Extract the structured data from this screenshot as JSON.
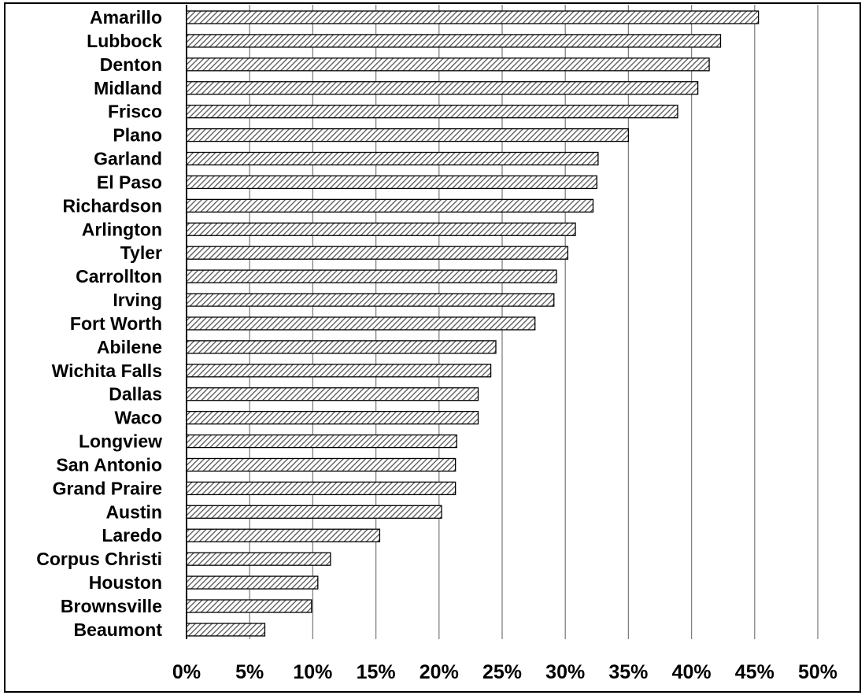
{
  "chart_data": {
    "type": "bar",
    "orientation": "horizontal",
    "title": "",
    "xlabel": "",
    "ylabel": "",
    "categories": [
      "Amarillo",
      "Lubbock",
      "Denton",
      "Midland",
      "Frisco",
      "Plano",
      "Garland",
      "El Paso",
      "Richardson",
      "Arlington",
      "Tyler",
      "Carrollton",
      "Irving",
      "Fort Worth",
      "Abilene",
      "Wichita Falls",
      "Dallas",
      "Waco",
      "Longview",
      "San Antonio",
      "Grand Praire",
      "Austin",
      "Laredo",
      "Corpus Christi",
      "Houston",
      "Brownsville",
      "Beaumont"
    ],
    "values": [
      45.3,
      42.3,
      41.4,
      40.5,
      38.9,
      35.0,
      32.6,
      32.5,
      32.2,
      30.8,
      30.2,
      29.3,
      29.1,
      27.6,
      24.5,
      24.1,
      23.1,
      23.1,
      21.4,
      21.3,
      21.3,
      20.2,
      15.3,
      11.4,
      10.4,
      9.9,
      6.2
    ],
    "xlim": [
      0,
      50
    ],
    "ticks": [
      0,
      5,
      10,
      15,
      20,
      25,
      30,
      35,
      40,
      45,
      50
    ],
    "tick_labels": [
      "0%",
      "5%",
      "10%",
      "15%",
      "20%",
      "25%",
      "30%",
      "35%",
      "40%",
      "45%",
      "50%"
    ],
    "grid": "vertical",
    "bar_fill": "hatched",
    "colors": {
      "bar_hatch": "#555555",
      "bar_outline": "#000000",
      "grid": "#808080"
    }
  }
}
